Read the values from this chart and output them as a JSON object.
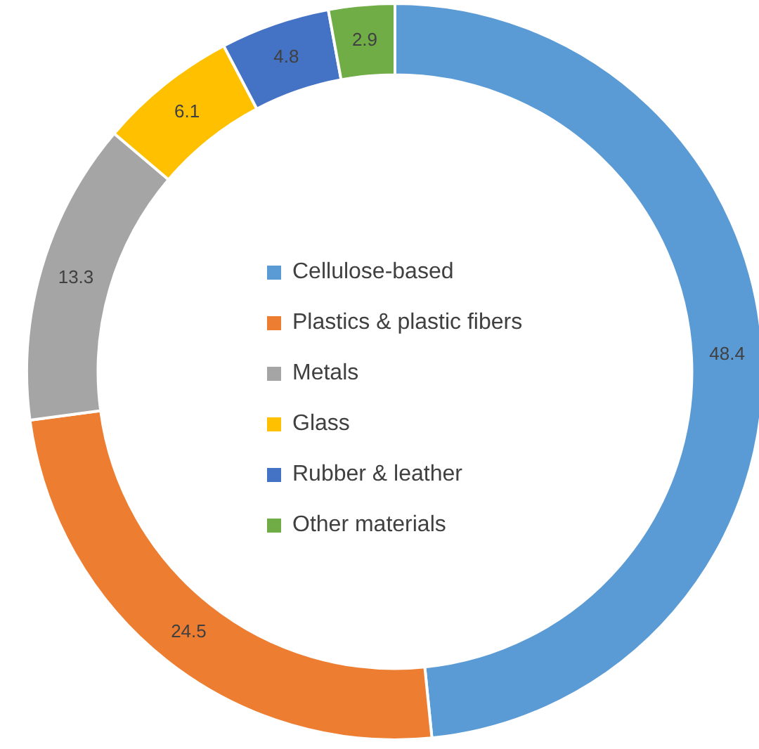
{
  "chart_data": {
    "type": "donut",
    "categories": [
      "Cellulose-based",
      "Plastics & plastic fibers",
      "Metals",
      "Glass",
      "Rubber & leather",
      "Other materials"
    ],
    "values": [
      48.4,
      24.5,
      13.3,
      6.1,
      4.8,
      2.9
    ],
    "colors": [
      "#5b9bd5",
      "#ed7d31",
      "#a5a5a5",
      "#ffc000",
      "#4472c4",
      "#70ad47"
    ],
    "data_labels": true,
    "legend": "center"
  }
}
